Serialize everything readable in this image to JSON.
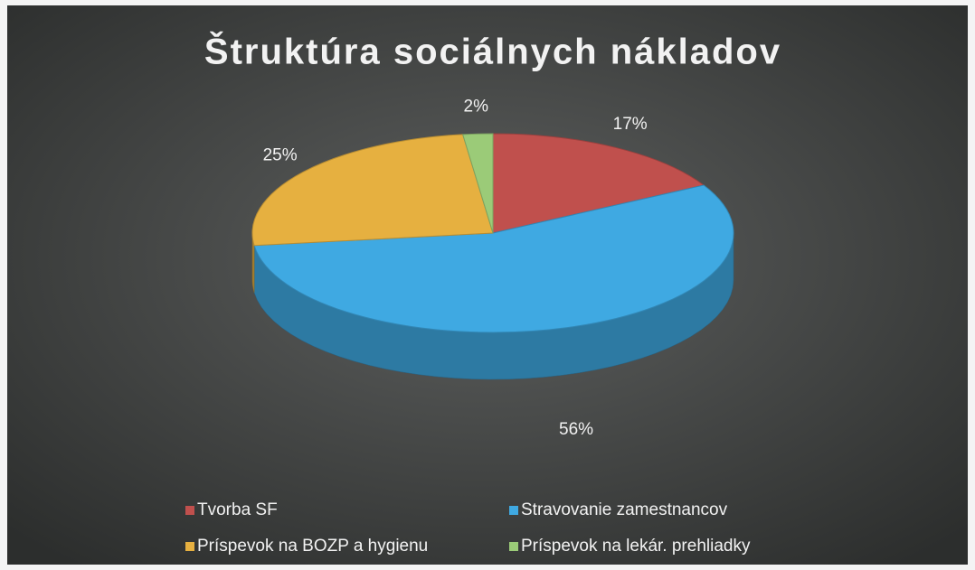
{
  "chart_data": {
    "type": "pie",
    "title": "Štruktúra sociálnych nákladov",
    "categories": [
      "Tvorba SF",
      "Stravovanie zamestnancov",
      "Príspevok na BOZP a hygienu",
      "Príspevok na lekár. prehliadky"
    ],
    "values": [
      17,
      56,
      25,
      2
    ],
    "value_labels": [
      "17%",
      "56%",
      "25%",
      "2%"
    ],
    "colors": [
      "#c0504d",
      "#3fa9e2",
      "#e6b040",
      "#9bcb78"
    ]
  }
}
